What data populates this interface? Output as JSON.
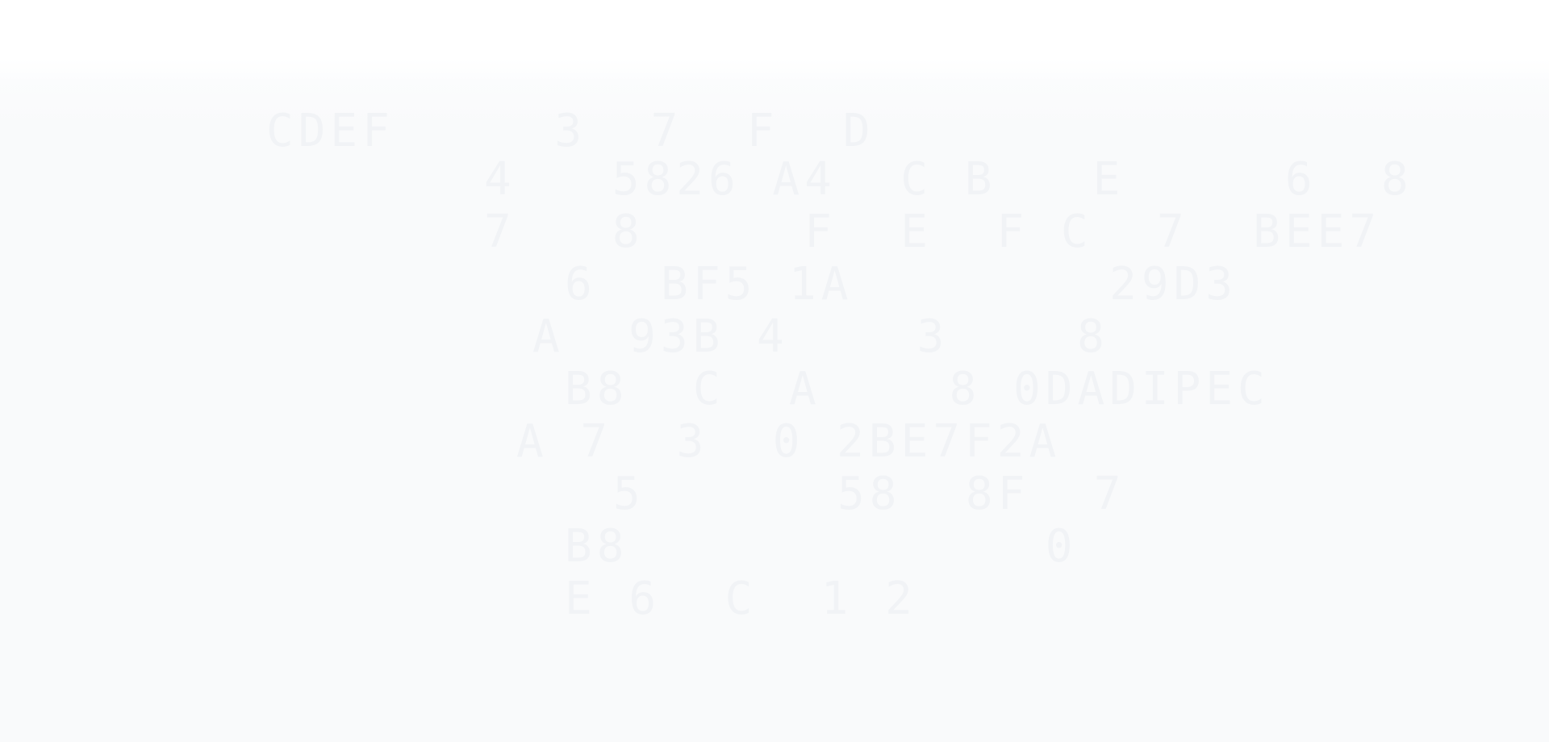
{
  "background": {
    "page_color": "#f9fafb",
    "header_color": "#ffffff",
    "glyph_color": "#f1f3f6"
  },
  "glyph_rows": [
    "CDEF     3  7  F  D",
    "4   5826 A4  C B   E     6  8",
    "7   8     F  E  F C  7  BEE7",
    "6  BF5 1A        29D3",
    "A  93B 4    3    8",
    "B8  C  A    8 0DADIPEC",
    "A 7  3  0 2BE7F2A",
    "5      58  8F  7",
    "B8             0   ",
    "E 6  C  1 2"
  ]
}
